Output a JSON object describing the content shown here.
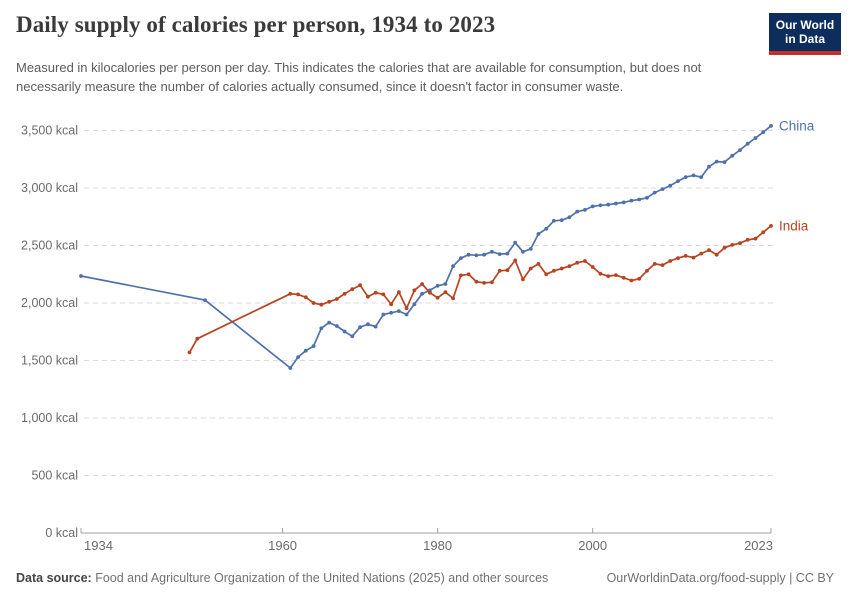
{
  "header": {
    "title": "Daily supply of calories per person, 1934 to 2023",
    "subtitle": "Measured in kilocalories per person per day. This indicates the calories that are available for consumption, but does not necessarily measure the number of calories actually consumed, since it doesn't factor in consumer waste.",
    "logo": {
      "line1": "Our World",
      "line2": "in Data"
    }
  },
  "footer": {
    "source_label": "Data source:",
    "source_text": "Food and Agriculture Organization of the United Nations (2025) and other sources",
    "attribution": "OurWorldinData.org/food-supply | CC BY"
  },
  "colors": {
    "china": "#4e71ab",
    "india": "#b8431f",
    "logo_bg": "#0d2e5c",
    "logo_stripe": "#c2302d",
    "grid": "#dadada",
    "axis": "#a0a0a0",
    "tick_text": "#6b6b6b"
  },
  "chart_data": {
    "type": "line",
    "title": "Daily supply of calories per person, 1934 to 2023",
    "unit": "kcal",
    "x": {
      "min": 1934,
      "max": 2023,
      "ticks": [
        1934,
        1960,
        1980,
        2000,
        2023
      ]
    },
    "y": {
      "min": 0,
      "max": 3500,
      "tick_step": 500,
      "tick_suffix": " kcal"
    },
    "grid": "horizontal-dashed",
    "legend_position": "end-of-line-labels",
    "series": [
      {
        "name": "China",
        "color": "#4e71ab",
        "points": [
          [
            1934,
            2235
          ],
          [
            1950,
            2025
          ],
          [
            1961,
            1435
          ],
          [
            1962,
            1530
          ],
          [
            1963,
            1585
          ],
          [
            1964,
            1625
          ],
          [
            1965,
            1780
          ],
          [
            1966,
            1830
          ],
          [
            1967,
            1800
          ],
          [
            1968,
            1752
          ],
          [
            1969,
            1710
          ],
          [
            1970,
            1790
          ],
          [
            1971,
            1815
          ],
          [
            1972,
            1795
          ],
          [
            1973,
            1900
          ],
          [
            1974,
            1915
          ],
          [
            1975,
            1930
          ],
          [
            1976,
            1900
          ],
          [
            1977,
            1990
          ],
          [
            1978,
            2080
          ],
          [
            1979,
            2110
          ],
          [
            1980,
            2150
          ],
          [
            1981,
            2165
          ],
          [
            1982,
            2320
          ],
          [
            1983,
            2390
          ],
          [
            1984,
            2420
          ],
          [
            1985,
            2415
          ],
          [
            1986,
            2420
          ],
          [
            1987,
            2445
          ],
          [
            1988,
            2425
          ],
          [
            1989,
            2430
          ],
          [
            1990,
            2525
          ],
          [
            1991,
            2445
          ],
          [
            1992,
            2470
          ],
          [
            1993,
            2600
          ],
          [
            1994,
            2645
          ],
          [
            1995,
            2715
          ],
          [
            1996,
            2720
          ],
          [
            1997,
            2745
          ],
          [
            1998,
            2795
          ],
          [
            1999,
            2810
          ],
          [
            2000,
            2840
          ],
          [
            2001,
            2850
          ],
          [
            2002,
            2855
          ],
          [
            2003,
            2865
          ],
          [
            2004,
            2875
          ],
          [
            2005,
            2890
          ],
          [
            2006,
            2900
          ],
          [
            2007,
            2915
          ],
          [
            2008,
            2960
          ],
          [
            2009,
            2990
          ],
          [
            2010,
            3020
          ],
          [
            2011,
            3060
          ],
          [
            2012,
            3095
          ],
          [
            2013,
            3110
          ],
          [
            2014,
            3095
          ],
          [
            2015,
            3185
          ],
          [
            2016,
            3230
          ],
          [
            2017,
            3225
          ],
          [
            2018,
            3280
          ],
          [
            2019,
            3330
          ],
          [
            2020,
            3385
          ],
          [
            2021,
            3435
          ],
          [
            2022,
            3485
          ],
          [
            2023,
            3540
          ]
        ]
      },
      {
        "name": "India",
        "color": "#b8431f",
        "points": [
          [
            1948,
            1570
          ],
          [
            1949,
            1690
          ],
          [
            1961,
            2080
          ],
          [
            1962,
            2075
          ],
          [
            1963,
            2050
          ],
          [
            1964,
            2000
          ],
          [
            1965,
            1985
          ],
          [
            1966,
            2010
          ],
          [
            1967,
            2035
          ],
          [
            1968,
            2080
          ],
          [
            1969,
            2120
          ],
          [
            1970,
            2155
          ],
          [
            1971,
            2055
          ],
          [
            1972,
            2090
          ],
          [
            1973,
            2075
          ],
          [
            1974,
            1990
          ],
          [
            1975,
            2095
          ],
          [
            1976,
            1955
          ],
          [
            1977,
            2110
          ],
          [
            1978,
            2165
          ],
          [
            1979,
            2090
          ],
          [
            1980,
            2045
          ],
          [
            1981,
            2095
          ],
          [
            1982,
            2040
          ],
          [
            1983,
            2240
          ],
          [
            1984,
            2250
          ],
          [
            1985,
            2185
          ],
          [
            1986,
            2175
          ],
          [
            1987,
            2180
          ],
          [
            1988,
            2280
          ],
          [
            1989,
            2285
          ],
          [
            1990,
            2370
          ],
          [
            1991,
            2205
          ],
          [
            1992,
            2300
          ],
          [
            1993,
            2340
          ],
          [
            1994,
            2250
          ],
          [
            1995,
            2280
          ],
          [
            1996,
            2300
          ],
          [
            1997,
            2320
          ],
          [
            1998,
            2350
          ],
          [
            1999,
            2365
          ],
          [
            2000,
            2313
          ],
          [
            2001,
            2254
          ],
          [
            2002,
            2234
          ],
          [
            2003,
            2243
          ],
          [
            2004,
            2219
          ],
          [
            2005,
            2196
          ],
          [
            2006,
            2210
          ],
          [
            2007,
            2280
          ],
          [
            2008,
            2340
          ],
          [
            2009,
            2330
          ],
          [
            2010,
            2365
          ],
          [
            2011,
            2390
          ],
          [
            2012,
            2410
          ],
          [
            2013,
            2395
          ],
          [
            2014,
            2430
          ],
          [
            2015,
            2460
          ],
          [
            2016,
            2420
          ],
          [
            2017,
            2480
          ],
          [
            2018,
            2505
          ],
          [
            2019,
            2520
          ],
          [
            2020,
            2550
          ],
          [
            2021,
            2560
          ],
          [
            2022,
            2615
          ],
          [
            2023,
            2670
          ]
        ]
      }
    ]
  }
}
